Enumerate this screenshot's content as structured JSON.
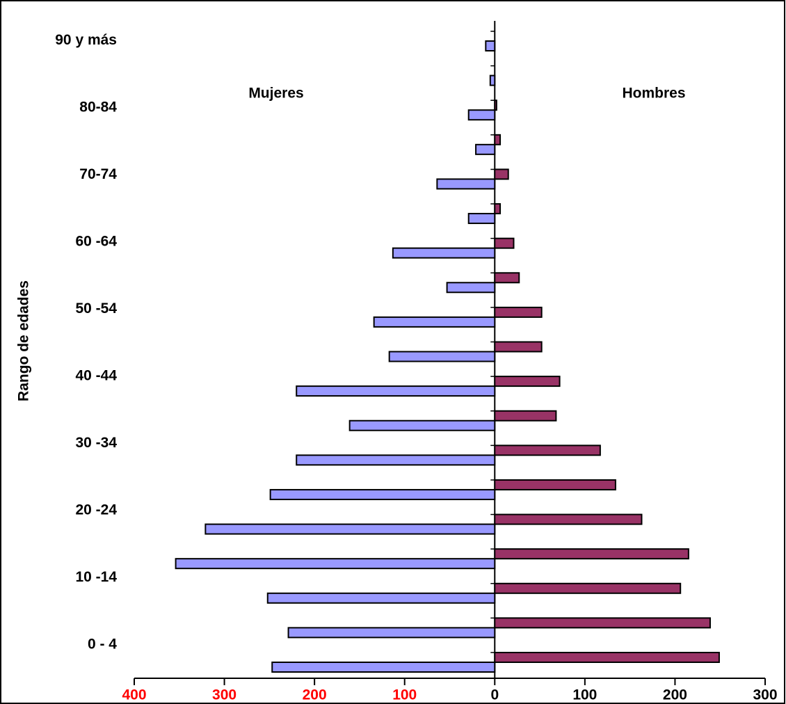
{
  "chart_data": {
    "type": "pyramid",
    "y_axis_label": "Rango de edades",
    "categories": [
      "0 - 4",
      null,
      "10 -14",
      null,
      "20 -24",
      null,
      "30 -34",
      null,
      "40 -44",
      null,
      "50 -54",
      null,
      "60 -64",
      null,
      "70-74",
      null,
      "80-84",
      null,
      "90 y más"
    ],
    "series": [
      {
        "name": "Mujeres",
        "color": "#9999ff",
        "values": [
          -247,
          -229,
          -252,
          -354,
          -321,
          -249,
          -220,
          -161,
          -220,
          -117,
          -134,
          -53,
          -113,
          -29,
          -64,
          -21,
          -29,
          -5,
          -10
        ]
      },
      {
        "name": "Hombres",
        "color": "#993366",
        "values": [
          249,
          239,
          206,
          215,
          163,
          134,
          117,
          68,
          72,
          52,
          52,
          27,
          21,
          6,
          15,
          6,
          2,
          0,
          0
        ]
      }
    ],
    "xlim": [
      -400,
      300
    ],
    "xticks": [
      {
        "value": -400,
        "label": "400"
      },
      {
        "value": -300,
        "label": "300"
      },
      {
        "value": -200,
        "label": "200"
      },
      {
        "value": -100,
        "label": "100"
      },
      0,
      100,
      200,
      300
    ],
    "negative_tick_color": "#ff0000",
    "tick_color": "#000000"
  }
}
